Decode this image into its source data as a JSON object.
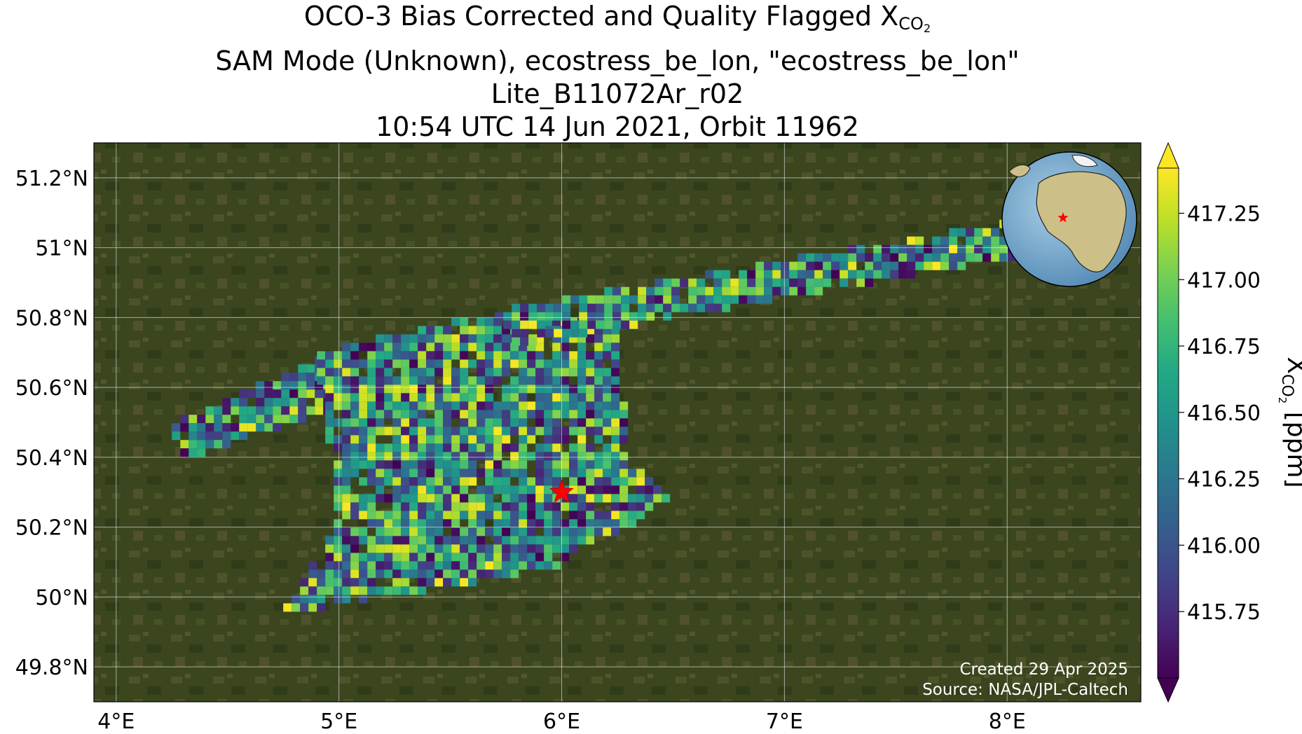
{
  "title": {
    "line1_prefix": "OCO-3 Bias Corrected and Quality Flagged X",
    "line1_subscript": "CO",
    "line1_subscript2": "2",
    "line2": "SAM Mode (Unknown), ecostress_be_lon, \"ecostress_be_lon\"",
    "line3": "Lite_B11072Ar_r02",
    "line4": "10:54 UTC 14 Jun 2021, Orbit 11962"
  },
  "credits": {
    "created": "Created 29 Apr 2025",
    "source": "Source: NASA/JPL-Caltech"
  },
  "colorbar": {
    "label_prefix": "X",
    "label_sub": "CO",
    "label_sub2": "2",
    "label_suffix": " [ppm]",
    "colormap": "viridis",
    "vmin": 415.5,
    "vmax": 417.42,
    "extend": "both",
    "ticks": [
      415.75,
      416.0,
      416.25,
      416.5,
      416.75,
      417.0,
      417.25
    ],
    "tick_labels": [
      "415.75",
      "416.00",
      "416.25",
      "416.50",
      "416.75",
      "417.00",
      "417.25"
    ]
  },
  "chart_data": {
    "type": "heatmap",
    "projection": "PlateCarree",
    "background": "satellite imagery",
    "grid": true,
    "xlim": [
      3.9,
      8.6
    ],
    "ylim": [
      49.7,
      51.3
    ],
    "xticks": [
      4,
      5,
      6,
      7,
      8
    ],
    "xtick_labels": [
      "4°E",
      "5°E",
      "6°E",
      "7°E",
      "8°E"
    ],
    "yticks": [
      49.8,
      50.0,
      50.2,
      50.4,
      50.6,
      50.8,
      51.0,
      51.2
    ],
    "ytick_labels": [
      "49.8°N",
      "50°N",
      "50.2°N",
      "50.4°N",
      "50.6°N",
      "50.8°N",
      "51°N",
      "51.2°N"
    ],
    "target": {
      "lon": 6.0,
      "lat": 50.3,
      "marker": "red star"
    },
    "inset_globe": {
      "marker_lon": 6.0,
      "marker_lat": 50.3,
      "marker": "red star"
    },
    "swaths": [
      {
        "name": "west",
        "corners": [
          [
            4.25,
            50.5
          ],
          [
            4.95,
            50.69
          ],
          [
            4.95,
            50.53
          ],
          [
            4.3,
            50.39
          ]
        ]
      },
      {
        "name": "main",
        "corners": [
          [
            4.75,
            49.95
          ],
          [
            5.0,
            50.22
          ],
          [
            4.9,
            50.7
          ],
          [
            5.6,
            50.8
          ],
          [
            6.25,
            50.8
          ],
          [
            6.3,
            50.38
          ],
          [
            6.5,
            50.29
          ],
          [
            6.35,
            50.22
          ],
          [
            5.95,
            50.08
          ],
          [
            4.85,
            49.96
          ]
        ]
      },
      {
        "name": "east-strip",
        "corners": [
          [
            5.7,
            50.82
          ],
          [
            8.05,
            51.08
          ],
          [
            8.1,
            50.98
          ],
          [
            5.8,
            50.72
          ]
        ]
      }
    ],
    "value_range_ppm": [
      415.5,
      417.42
    ]
  }
}
